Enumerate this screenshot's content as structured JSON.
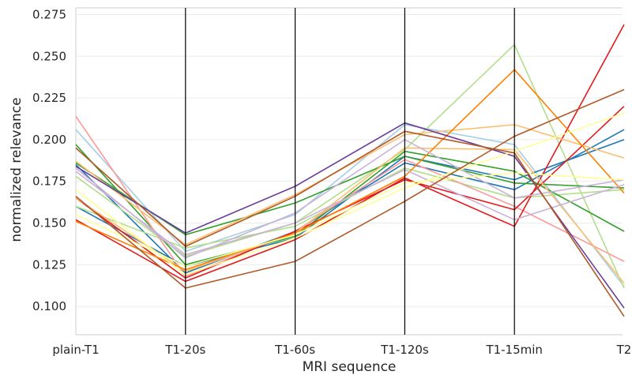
{
  "chart_data": {
    "type": "line",
    "title": "",
    "xlabel": "MRI sequence",
    "ylabel": "normalized relevance",
    "categories": [
      "plain-T1",
      "T1-20s",
      "T1-60s",
      "T1-120s",
      "T1-15min",
      "T2"
    ],
    "ylim": [
      0.083,
      0.279
    ],
    "yticks": [
      0.1,
      0.125,
      0.15,
      0.175,
      0.2,
      0.225,
      0.25,
      0.275
    ],
    "ytick_labels": [
      "0.100",
      "0.125",
      "0.150",
      "0.175",
      "0.200",
      "0.225",
      "0.250",
      "0.275"
    ],
    "grid": "horizontal",
    "vertical_axes_at_categories": true,
    "series": [
      {
        "color": "#a6cee3",
        "values": [
          0.206,
          0.133,
          0.155,
          0.209,
          0.197,
          0.112
        ]
      },
      {
        "color": "#1f78b4",
        "values": [
          0.185,
          0.12,
          0.145,
          0.186,
          0.17,
          0.206
        ]
      },
      {
        "color": "#1f78b4",
        "values": [
          0.16,
          0.124,
          0.141,
          0.19,
          0.176,
          0.2
        ]
      },
      {
        "color": "#b2df8a",
        "values": [
          0.178,
          0.13,
          0.15,
          0.194,
          0.257,
          0.111
        ]
      },
      {
        "color": "#b2df8a",
        "values": [
          0.16,
          0.135,
          0.148,
          0.183,
          0.165,
          0.17
        ]
      },
      {
        "color": "#33a02c",
        "values": [
          0.197,
          0.125,
          0.142,
          0.193,
          0.181,
          0.145
        ]
      },
      {
        "color": "#33a02c",
        "values": [
          0.186,
          0.143,
          0.162,
          0.19,
          0.174,
          0.171
        ]
      },
      {
        "color": "#fb9a99",
        "values": [
          0.214,
          0.118,
          0.145,
          0.188,
          0.16,
          0.127
        ]
      },
      {
        "color": "#e31a1c",
        "values": [
          0.152,
          0.115,
          0.14,
          0.177,
          0.148,
          0.269
        ]
      },
      {
        "color": "#e31a1c",
        "values": [
          0.165,
          0.117,
          0.145,
          0.176,
          0.158,
          0.22
        ]
      },
      {
        "color": "#fdbf6f",
        "values": [
          0.187,
          0.137,
          0.167,
          0.203,
          0.209,
          0.189
        ]
      },
      {
        "color": "#fdbf6f",
        "values": [
          0.165,
          0.121,
          0.144,
          0.195,
          0.194,
          0.114
        ]
      },
      {
        "color": "#ff7f00",
        "values": [
          0.151,
          0.122,
          0.144,
          0.178,
          0.242,
          0.168
        ]
      },
      {
        "color": "#cab2d6",
        "values": [
          0.183,
          0.129,
          0.156,
          0.2,
          0.165,
          0.176
        ]
      },
      {
        "color": "#cab2d6",
        "values": [
          0.181,
          0.131,
          0.15,
          0.182,
          0.152,
          0.173
        ]
      },
      {
        "color": "#6a3d9a",
        "values": [
          0.184,
          0.144,
          0.172,
          0.21,
          0.19,
          0.099
        ]
      },
      {
        "color": "#ffff99",
        "values": [
          0.17,
          0.119,
          0.141,
          0.171,
          0.193,
          0.216
        ]
      },
      {
        "color": "#ffff99",
        "values": [
          0.155,
          0.124,
          0.143,
          0.174,
          0.18,
          0.176
        ]
      },
      {
        "color": "#b15928",
        "values": [
          0.195,
          0.136,
          0.166,
          0.205,
          0.192,
          0.094
        ]
      },
      {
        "color": "#b15928",
        "values": [
          0.166,
          0.111,
          0.127,
          0.163,
          0.202,
          0.23
        ]
      }
    ]
  }
}
